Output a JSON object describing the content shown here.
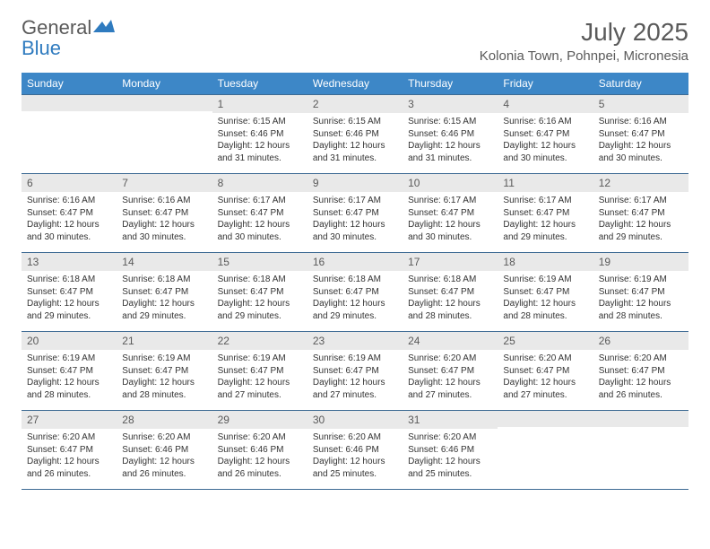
{
  "brand": {
    "name_part1": "General",
    "name_part2": "Blue",
    "text_color": "#5a5a5a",
    "accent_color": "#2f7bbf"
  },
  "header": {
    "month_title": "July 2025",
    "location": "Kolonia Town, Pohnpei, Micronesia"
  },
  "calendar": {
    "header_bg": "#3d87c7",
    "header_fg": "#ffffff",
    "daynum_bg": "#e9e9e9",
    "daynum_fg": "#5a5a5a",
    "border_color": "#3d6a93",
    "body_text_color": "#333333",
    "day_headers": [
      "Sunday",
      "Monday",
      "Tuesday",
      "Wednesday",
      "Thursday",
      "Friday",
      "Saturday"
    ],
    "weeks": [
      [
        {
          "day": "",
          "sunrise": "",
          "sunset": "",
          "daylight": ""
        },
        {
          "day": "",
          "sunrise": "",
          "sunset": "",
          "daylight": ""
        },
        {
          "day": "1",
          "sunrise": "Sunrise: 6:15 AM",
          "sunset": "Sunset: 6:46 PM",
          "daylight": "Daylight: 12 hours and 31 minutes."
        },
        {
          "day": "2",
          "sunrise": "Sunrise: 6:15 AM",
          "sunset": "Sunset: 6:46 PM",
          "daylight": "Daylight: 12 hours and 31 minutes."
        },
        {
          "day": "3",
          "sunrise": "Sunrise: 6:15 AM",
          "sunset": "Sunset: 6:46 PM",
          "daylight": "Daylight: 12 hours and 31 minutes."
        },
        {
          "day": "4",
          "sunrise": "Sunrise: 6:16 AM",
          "sunset": "Sunset: 6:47 PM",
          "daylight": "Daylight: 12 hours and 30 minutes."
        },
        {
          "day": "5",
          "sunrise": "Sunrise: 6:16 AM",
          "sunset": "Sunset: 6:47 PM",
          "daylight": "Daylight: 12 hours and 30 minutes."
        }
      ],
      [
        {
          "day": "6",
          "sunrise": "Sunrise: 6:16 AM",
          "sunset": "Sunset: 6:47 PM",
          "daylight": "Daylight: 12 hours and 30 minutes."
        },
        {
          "day": "7",
          "sunrise": "Sunrise: 6:16 AM",
          "sunset": "Sunset: 6:47 PM",
          "daylight": "Daylight: 12 hours and 30 minutes."
        },
        {
          "day": "8",
          "sunrise": "Sunrise: 6:17 AM",
          "sunset": "Sunset: 6:47 PM",
          "daylight": "Daylight: 12 hours and 30 minutes."
        },
        {
          "day": "9",
          "sunrise": "Sunrise: 6:17 AM",
          "sunset": "Sunset: 6:47 PM",
          "daylight": "Daylight: 12 hours and 30 minutes."
        },
        {
          "day": "10",
          "sunrise": "Sunrise: 6:17 AM",
          "sunset": "Sunset: 6:47 PM",
          "daylight": "Daylight: 12 hours and 30 minutes."
        },
        {
          "day": "11",
          "sunrise": "Sunrise: 6:17 AM",
          "sunset": "Sunset: 6:47 PM",
          "daylight": "Daylight: 12 hours and 29 minutes."
        },
        {
          "day": "12",
          "sunrise": "Sunrise: 6:17 AM",
          "sunset": "Sunset: 6:47 PM",
          "daylight": "Daylight: 12 hours and 29 minutes."
        }
      ],
      [
        {
          "day": "13",
          "sunrise": "Sunrise: 6:18 AM",
          "sunset": "Sunset: 6:47 PM",
          "daylight": "Daylight: 12 hours and 29 minutes."
        },
        {
          "day": "14",
          "sunrise": "Sunrise: 6:18 AM",
          "sunset": "Sunset: 6:47 PM",
          "daylight": "Daylight: 12 hours and 29 minutes."
        },
        {
          "day": "15",
          "sunrise": "Sunrise: 6:18 AM",
          "sunset": "Sunset: 6:47 PM",
          "daylight": "Daylight: 12 hours and 29 minutes."
        },
        {
          "day": "16",
          "sunrise": "Sunrise: 6:18 AM",
          "sunset": "Sunset: 6:47 PM",
          "daylight": "Daylight: 12 hours and 29 minutes."
        },
        {
          "day": "17",
          "sunrise": "Sunrise: 6:18 AM",
          "sunset": "Sunset: 6:47 PM",
          "daylight": "Daylight: 12 hours and 28 minutes."
        },
        {
          "day": "18",
          "sunrise": "Sunrise: 6:19 AM",
          "sunset": "Sunset: 6:47 PM",
          "daylight": "Daylight: 12 hours and 28 minutes."
        },
        {
          "day": "19",
          "sunrise": "Sunrise: 6:19 AM",
          "sunset": "Sunset: 6:47 PM",
          "daylight": "Daylight: 12 hours and 28 minutes."
        }
      ],
      [
        {
          "day": "20",
          "sunrise": "Sunrise: 6:19 AM",
          "sunset": "Sunset: 6:47 PM",
          "daylight": "Daylight: 12 hours and 28 minutes."
        },
        {
          "day": "21",
          "sunrise": "Sunrise: 6:19 AM",
          "sunset": "Sunset: 6:47 PM",
          "daylight": "Daylight: 12 hours and 28 minutes."
        },
        {
          "day": "22",
          "sunrise": "Sunrise: 6:19 AM",
          "sunset": "Sunset: 6:47 PM",
          "daylight": "Daylight: 12 hours and 27 minutes."
        },
        {
          "day": "23",
          "sunrise": "Sunrise: 6:19 AM",
          "sunset": "Sunset: 6:47 PM",
          "daylight": "Daylight: 12 hours and 27 minutes."
        },
        {
          "day": "24",
          "sunrise": "Sunrise: 6:20 AM",
          "sunset": "Sunset: 6:47 PM",
          "daylight": "Daylight: 12 hours and 27 minutes."
        },
        {
          "day": "25",
          "sunrise": "Sunrise: 6:20 AM",
          "sunset": "Sunset: 6:47 PM",
          "daylight": "Daylight: 12 hours and 27 minutes."
        },
        {
          "day": "26",
          "sunrise": "Sunrise: 6:20 AM",
          "sunset": "Sunset: 6:47 PM",
          "daylight": "Daylight: 12 hours and 26 minutes."
        }
      ],
      [
        {
          "day": "27",
          "sunrise": "Sunrise: 6:20 AM",
          "sunset": "Sunset: 6:47 PM",
          "daylight": "Daylight: 12 hours and 26 minutes."
        },
        {
          "day": "28",
          "sunrise": "Sunrise: 6:20 AM",
          "sunset": "Sunset: 6:46 PM",
          "daylight": "Daylight: 12 hours and 26 minutes."
        },
        {
          "day": "29",
          "sunrise": "Sunrise: 6:20 AM",
          "sunset": "Sunset: 6:46 PM",
          "daylight": "Daylight: 12 hours and 26 minutes."
        },
        {
          "day": "30",
          "sunrise": "Sunrise: 6:20 AM",
          "sunset": "Sunset: 6:46 PM",
          "daylight": "Daylight: 12 hours and 25 minutes."
        },
        {
          "day": "31",
          "sunrise": "Sunrise: 6:20 AM",
          "sunset": "Sunset: 6:46 PM",
          "daylight": "Daylight: 12 hours and 25 minutes."
        },
        {
          "day": "",
          "sunrise": "",
          "sunset": "",
          "daylight": ""
        },
        {
          "day": "",
          "sunrise": "",
          "sunset": "",
          "daylight": ""
        }
      ]
    ]
  }
}
